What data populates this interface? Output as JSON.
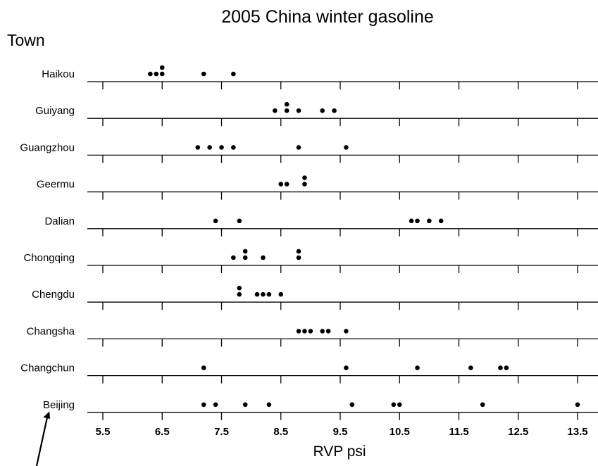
{
  "chart_data": {
    "type": "scatter",
    "title": "2005 China winter gasoline",
    "ylabel": "Town",
    "xlabel": "RVP psi",
    "xlim": [
      5.3,
      13.6
    ],
    "xticks": [
      5.5,
      6.5,
      7.5,
      8.5,
      9.5,
      10.5,
      11.5,
      12.5,
      13.5
    ],
    "xtick_labels": [
      "5.5",
      "6.5",
      "7.5",
      "8.5",
      "9.5",
      "10.5",
      "11.5",
      "12.5",
      "13.5"
    ],
    "grid": false,
    "categories": [
      "Haikou",
      "Guiyang",
      "Guangzhou",
      "Geermu",
      "Dalian",
      "Chongqing",
      "Chengdu",
      "Changsha",
      "Changchun",
      "Beijing"
    ],
    "points": {
      "Haikou": [
        6.3,
        6.4,
        6.5,
        6.5,
        7.2,
        7.7
      ],
      "Guiyang": [
        8.4,
        8.6,
        8.6,
        8.8,
        9.2,
        9.4
      ],
      "Guangzhou": [
        7.1,
        7.3,
        7.5,
        7.7,
        8.8,
        9.6
      ],
      "Geermu": [
        8.5,
        8.6,
        8.9,
        8.9
      ],
      "Dalian": [
        7.4,
        7.8,
        10.7,
        10.8,
        11.0,
        11.2
      ],
      "Chongqing": [
        7.7,
        7.9,
        7.9,
        8.2,
        8.8,
        8.8
      ],
      "Chengdu": [
        7.8,
        7.8,
        8.1,
        8.2,
        8.3,
        8.5
      ],
      "Changsha": [
        8.8,
        8.9,
        9.0,
        9.2,
        9.3,
        9.6
      ],
      "Changchun": [
        7.2,
        9.6,
        10.8,
        11.7,
        12.2,
        12.3
      ],
      "Beijing": [
        7.2,
        7.4,
        7.9,
        8.3,
        9.7,
        10.4,
        10.5,
        11.9,
        13.5
      ]
    }
  }
}
